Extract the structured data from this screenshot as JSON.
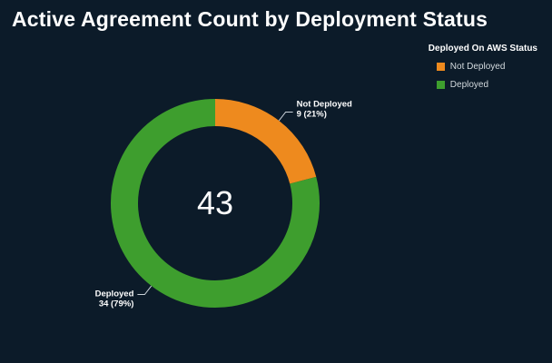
{
  "page": {
    "background": "#0c1b29"
  },
  "header": {
    "title": "Active Agreement Count by Deployment Status"
  },
  "legend": {
    "title": "Deployed On AWS Status",
    "items": [
      {
        "label": "Not Deployed",
        "color": "#ee8a1e"
      },
      {
        "label": "Deployed",
        "color": "#3e9e2e"
      }
    ]
  },
  "chart_data": {
    "type": "pie",
    "subtype": "donut",
    "title": "Active Agreement Count by Deployment Status",
    "categories": [
      "Not Deployed",
      "Deployed"
    ],
    "values": [
      9,
      34
    ],
    "percentages": [
      21,
      79
    ],
    "colors": [
      "#ee8a1e",
      "#3e9e2e"
    ],
    "total": 43,
    "center_label": "43",
    "legend_title": "Deployed On AWS Status",
    "legend_position": "top-right",
    "slice_label_format": "name, value (pct%)"
  }
}
